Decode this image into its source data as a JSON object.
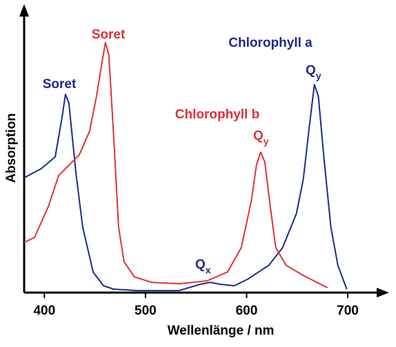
{
  "chart_data": {
    "type": "line",
    "x_label": "Wellenlänge / nm",
    "y_label": "Absorption",
    "xlim": [
      380,
      730
    ],
    "ylim": [
      0,
      100
    ],
    "xticks": [
      400,
      500,
      600,
      700
    ],
    "series": [
      {
        "name": "Chlorophyll a",
        "color": "#1c2a8e",
        "x": [
          380,
          397.0,
          410.7,
          417.5,
          420.9,
          424.3,
          431.1,
          437.9,
          448.2,
          458.4,
          468.6,
          492.5,
          533.4,
          553.8,
          564.1,
          574.3,
          587.9,
          601.6,
          622.0,
          635.6,
          649.3,
          656.1,
          661.5,
          667.0,
          671.0,
          676.5,
          683.3,
          690.2,
          699.0
        ],
        "values": [
          40.2,
          43.4,
          47.5,
          61.4,
          69.4,
          66.3,
          42.2,
          22.9,
          7.2,
          2.4,
          1.2,
          0.7,
          0.7,
          2.9,
          3.6,
          2.9,
          2.4,
          4.8,
          9.6,
          15.7,
          27.7,
          39.8,
          56.6,
          72.8,
          68.7,
          47.0,
          22.9,
          9.6,
          1.2
        ]
      },
      {
        "name": "Chlorophyll b",
        "color": "#e0303a",
        "x": [
          380,
          390.2,
          403.9,
          414.1,
          424.3,
          434.5,
          444.8,
          451.6,
          457.0,
          460.4,
          463.8,
          468.6,
          473.4,
          478.8,
          489.1,
          506.1,
          533.4,
          560.6,
          581.1,
          594.7,
          604.9,
          609.7,
          613.8,
          617.9,
          623.4,
          628.8,
          639.0,
          656.1,
          680.0
        ],
        "values": [
          17.6,
          19.3,
          30.1,
          41.0,
          44.6,
          48.2,
          56.6,
          68.7,
          80.7,
          87.5,
          83.1,
          54.2,
          22.9,
          10.8,
          5.5,
          3.6,
          3.1,
          4.1,
          7.2,
          15.7,
          32.5,
          44.6,
          49.2,
          45.8,
          30.1,
          15.7,
          9.6,
          6.0,
          1.7
        ]
      }
    ],
    "annotations": [
      {
        "text": "Soret"
      },
      {
        "text": "Soret"
      },
      {
        "text": "Q",
        "sub": "y"
      },
      {
        "text": "Q",
        "sub": "y"
      },
      {
        "text": "Q",
        "sub": "x"
      }
    ]
  }
}
